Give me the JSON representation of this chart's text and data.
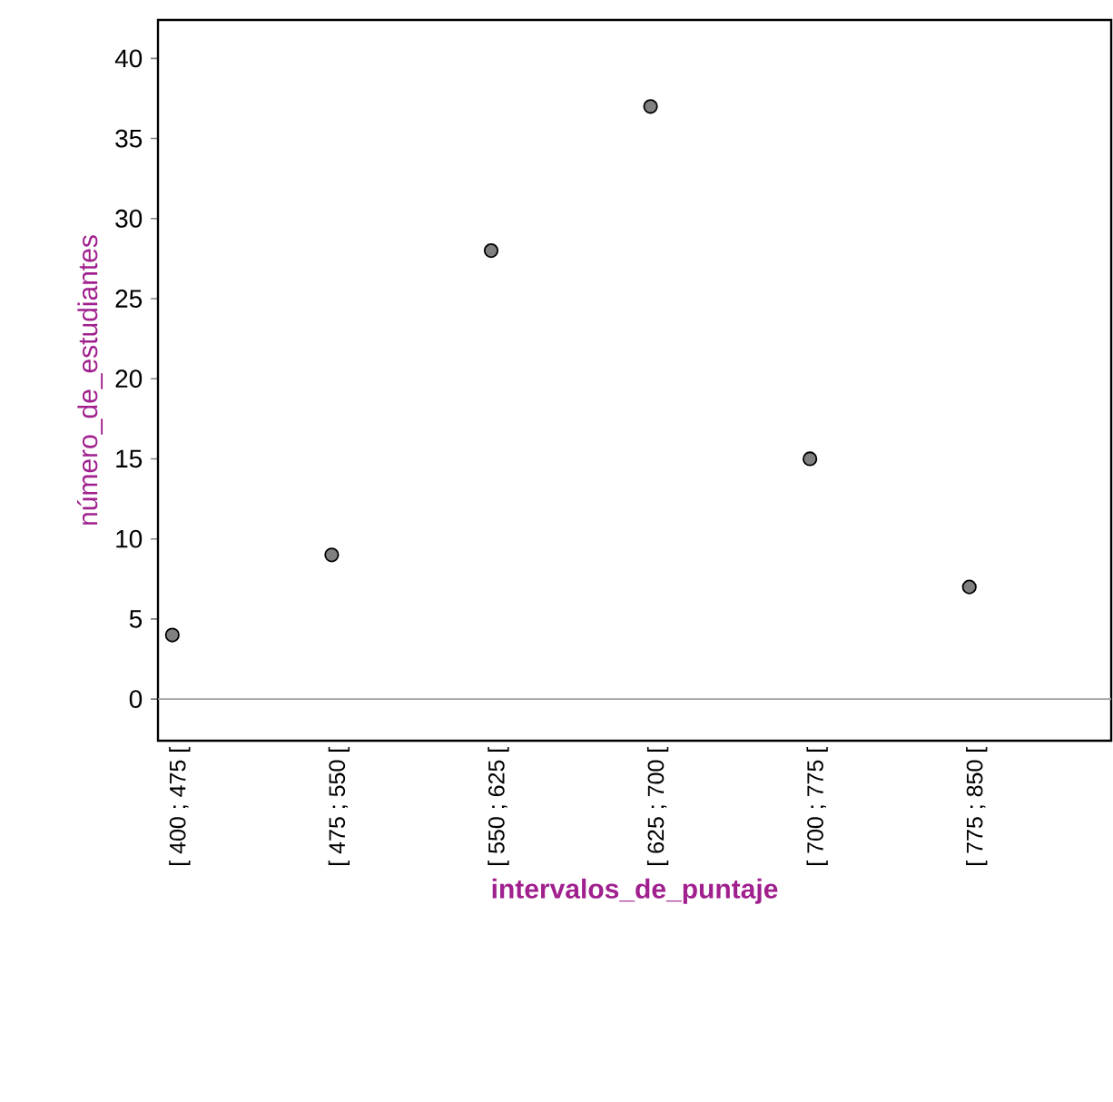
{
  "chart_data": {
    "type": "scatter",
    "xlabel": "intervalos_de_puntaje",
    "ylabel": "número_de_estudiantes",
    "categories": [
      "[ 400 ; 475 [",
      "[ 475 ; 550 [",
      "[ 550 ; 625 [",
      "[ 625 ; 700 [",
      "[ 700 ; 775 [",
      "[ 775 ; 850 ["
    ],
    "values": [
      4,
      9,
      28,
      37,
      15,
      7
    ],
    "color": "#808080",
    "marker": "circle",
    "ylim": [
      -2.6,
      42.4
    ],
    "yticks": [
      0,
      5,
      10,
      15,
      20,
      25,
      30,
      35,
      40
    ],
    "ref_lines": [
      {
        "axis": "y",
        "value": 0,
        "color": "#a0a0a0"
      }
    ]
  }
}
